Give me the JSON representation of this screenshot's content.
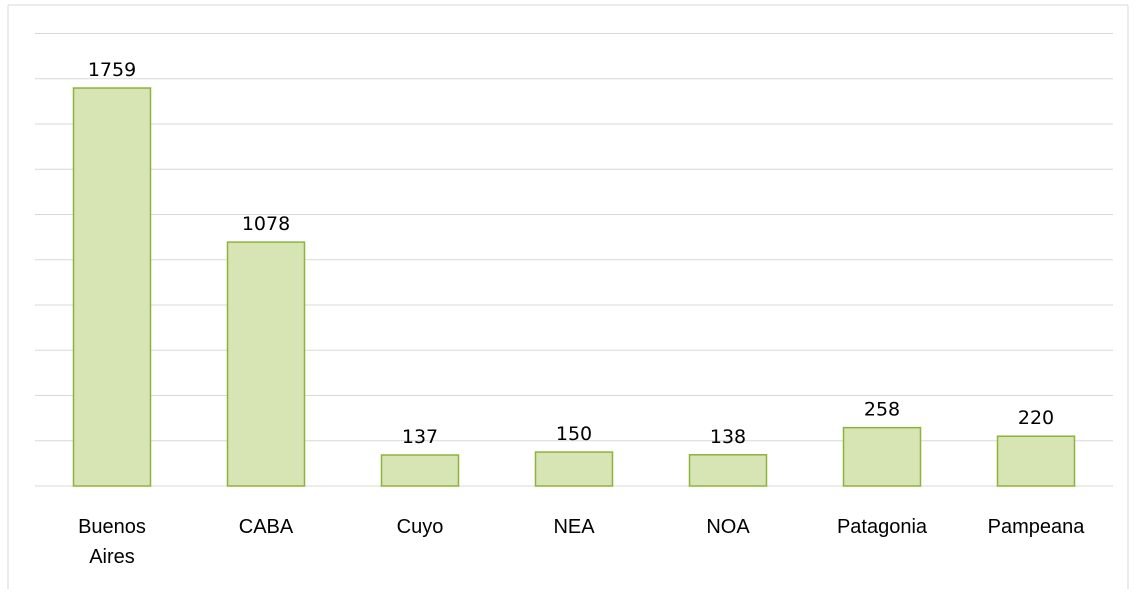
{
  "chart_data": {
    "type": "bar",
    "categories": [
      "Buenos Aires",
      "CABA",
      "Cuyo",
      "NEA",
      "NOA",
      "Patagonia",
      "Pampeana"
    ],
    "values": [
      1759,
      1078,
      137,
      150,
      138,
      258,
      220
    ],
    "color": "#d7e4b4",
    "edge_color": "#8db33a",
    "ylim": [
      0,
      2000
    ],
    "yticks": [
      0,
      200,
      400,
      600,
      800,
      1000,
      1200,
      1400,
      1600,
      1800,
      2000
    ],
    "grid": true
  }
}
